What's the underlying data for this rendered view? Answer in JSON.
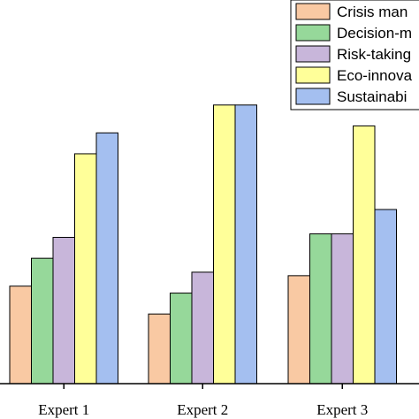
{
  "chart_data": {
    "type": "bar",
    "categories": [
      "Expert 1",
      "Expert 2",
      "Expert 3"
    ],
    "series": [
      {
        "name": "Crisis man",
        "color": "#f9c9a3",
        "values": [
          0.28,
          0.2,
          0.31
        ]
      },
      {
        "name": "Decision-m",
        "color": "#96d89a",
        "values": [
          0.36,
          0.26,
          0.43
        ]
      },
      {
        "name": "Risk-taking",
        "color": "#c8b6da",
        "values": [
          0.42,
          0.32,
          0.43
        ]
      },
      {
        "name": "Eco-innova",
        "color": "#ffff99",
        "values": [
          0.66,
          0.8,
          0.74
        ]
      },
      {
        "name": "Sustainabi",
        "color": "#a4bff0",
        "values": [
          0.72,
          0.8,
          0.5
        ]
      }
    ],
    "ylim": [
      0,
      1
    ],
    "grid": false,
    "legend": "top-right"
  }
}
